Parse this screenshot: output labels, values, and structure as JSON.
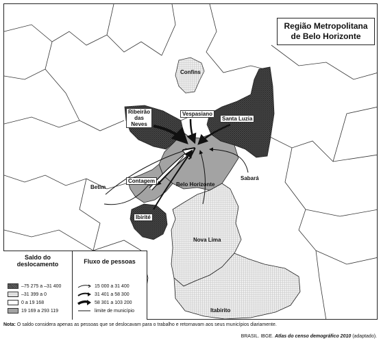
{
  "title": {
    "line1": "Região Metropolitana",
    "line2": "de Belo Horizonte"
  },
  "places": {
    "confins": "Confins",
    "ribeirao_das_neves": [
      "Ribeirão",
      "das",
      "Neves"
    ],
    "vespasiano": "Vespasiano",
    "santa_luzia": "Santa Luzia",
    "betim": "Betim",
    "contagem": "Contagem",
    "belo_horizonte": "Belo Horizonte",
    "sabara": "Sabará",
    "ibirite": "Ibirité",
    "nova_lima": "Nova Lima",
    "itabirito": "Itabirito"
  },
  "legend": {
    "saldo_title": [
      "Saldo do",
      "deslocamento"
    ],
    "saldo_items": [
      {
        "label": "–75 275 a –31 400",
        "pattern": "dark-crosshatch",
        "color": "#4a4a4a"
      },
      {
        "label": "–31 399 a 0",
        "pattern": "light-dotted",
        "color": "#e8e8e8"
      },
      {
        "label": "0 a 19 168",
        "pattern": "white",
        "color": "#ffffff"
      },
      {
        "label": "19 169 a 293 119",
        "pattern": "gray",
        "color": "#a3a3a3"
      }
    ],
    "fluxo_title": "Fluxo de pessoas",
    "fluxo_items": [
      {
        "label": "15 000 a 31 400",
        "weight": "thin"
      },
      {
        "label": "31 401 a 58 300",
        "weight": "medium"
      },
      {
        "label": "58 301 a 103 200",
        "weight": "thick"
      },
      {
        "label": "limite de município",
        "weight": "line"
      }
    ]
  },
  "note": {
    "bold": "Nota:",
    "text": " O saldo considera apenas as pessoas que se deslocavam para o trabalho e retornavam aos seus municípios diariamente."
  },
  "source": {
    "prefix": "BRASIL. IBGE. ",
    "italic": "Atlas do censo demográfico 2010",
    "suffix": " (adaptado)."
  }
}
